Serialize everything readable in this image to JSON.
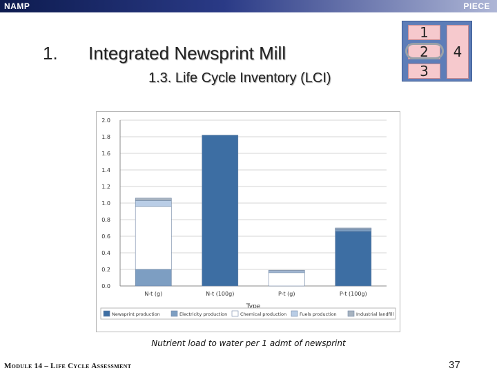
{
  "header": {
    "left": "NAMP",
    "right": "PIECE"
  },
  "slide": {
    "number": "1.",
    "title": "Integrated Newsprint Mill",
    "subtitle": "1.3. Life Cycle Inventory (LCI)"
  },
  "steps": {
    "s1": "1",
    "s2": "2",
    "s3": "3",
    "s4": "4"
  },
  "chart_data": {
    "type": "bar",
    "stacked": true,
    "categories": [
      "N-t (g)",
      "N-t (100g)",
      "P-t (g)",
      "P-t (100g)"
    ],
    "xlabel": "Type",
    "ylabel": "",
    "ylim": [
      0,
      2.0
    ],
    "yticks": [
      "0.0",
      "0.2",
      "0.4",
      "0.6",
      "0.8",
      "1.0",
      "1.2",
      "1.4",
      "1.6",
      "1.8",
      "2.0"
    ],
    "grid": true,
    "legend_position": "bottom",
    "series": [
      {
        "name": "Newsprint production",
        "color": "#3d6ea3",
        "values": [
          0.0,
          1.82,
          0.0,
          0.66
        ]
      },
      {
        "name": "Electricity production",
        "color": "#7d9ec2",
        "values": [
          0.2,
          0.0,
          0.0,
          0.02
        ]
      },
      {
        "name": "Chemical production",
        "color": "#ffffff",
        "values": [
          0.76,
          0.0,
          0.16,
          0.0
        ]
      },
      {
        "name": "Fuels production",
        "color": "#b9cde6",
        "values": [
          0.07,
          0.0,
          0.02,
          0.01
        ]
      },
      {
        "name": "Industrial landfill",
        "color": "#a7b3c0",
        "values": [
          0.03,
          0.0,
          0.01,
          0.01
        ]
      }
    ]
  },
  "caption": "Nutrient load to water per 1 admt of newsprint",
  "footer": "Module 14 – Life Cycle Assessment",
  "page": "37"
}
